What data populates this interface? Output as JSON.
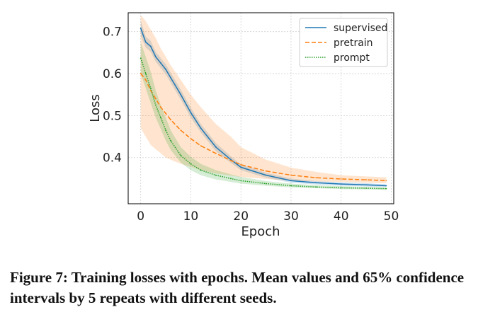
{
  "chart_data": {
    "type": "line",
    "title": "",
    "xlabel": "Epoch",
    "ylabel": "Loss",
    "xlim": [
      -2.5,
      50.5
    ],
    "ylim": [
      0.29,
      0.745
    ],
    "xticks": [
      0,
      10,
      20,
      30,
      40,
      50
    ],
    "yticks": [
      0.4,
      0.5,
      0.6,
      0.7
    ],
    "grid": true,
    "legend_position": "top-right",
    "series": [
      {
        "name": "supervised",
        "color": "#1f77b4",
        "style": "solid",
        "x": [
          0,
          1,
          2,
          3,
          4,
          5,
          6,
          8,
          10,
          12,
          15,
          18,
          20,
          25,
          30,
          35,
          40,
          45,
          49
        ],
        "values": [
          0.708,
          0.675,
          0.665,
          0.64,
          0.625,
          0.61,
          0.59,
          0.55,
          0.507,
          0.47,
          0.425,
          0.395,
          0.377,
          0.358,
          0.345,
          0.34,
          0.337,
          0.335,
          0.333
        ],
        "lower": [
          0.69,
          0.662,
          0.652,
          0.628,
          0.613,
          0.598,
          0.578,
          0.538,
          0.495,
          0.46,
          0.415,
          0.387,
          0.37,
          0.352,
          0.34,
          0.336,
          0.333,
          0.331,
          0.33
        ],
        "upper": [
          0.726,
          0.688,
          0.678,
          0.652,
          0.637,
          0.622,
          0.602,
          0.562,
          0.519,
          0.48,
          0.435,
          0.403,
          0.384,
          0.364,
          0.35,
          0.344,
          0.341,
          0.339,
          0.336
        ]
      },
      {
        "name": "pretrain",
        "color": "#ff7f0e",
        "style": "dashed",
        "x": [
          0,
          1,
          2,
          3,
          4,
          5,
          6,
          8,
          10,
          12,
          15,
          18,
          20,
          25,
          30,
          35,
          40,
          45,
          49
        ],
        "values": [
          0.6,
          0.585,
          0.56,
          0.54,
          0.52,
          0.505,
          0.49,
          0.465,
          0.445,
          0.428,
          0.41,
          0.393,
          0.383,
          0.368,
          0.358,
          0.352,
          0.349,
          0.347,
          0.345
        ],
        "lower": [
          0.47,
          0.45,
          0.43,
          0.42,
          0.41,
          0.4,
          0.395,
          0.385,
          0.378,
          0.37,
          0.362,
          0.357,
          0.354,
          0.349,
          0.345,
          0.343,
          0.342,
          0.34,
          0.339
        ],
        "upper": [
          0.74,
          0.725,
          0.705,
          0.685,
          0.66,
          0.64,
          0.62,
          0.585,
          0.55,
          0.52,
          0.48,
          0.45,
          0.425,
          0.395,
          0.376,
          0.366,
          0.358,
          0.355,
          0.353
        ]
      },
      {
        "name": "prompt",
        "color": "#2ca02c",
        "style": "dotted",
        "x": [
          0,
          1,
          2,
          3,
          4,
          5,
          6,
          8,
          10,
          12,
          15,
          18,
          20,
          25,
          30,
          35,
          40,
          45,
          49
        ],
        "values": [
          0.637,
          0.6,
          0.565,
          0.525,
          0.495,
          0.465,
          0.44,
          0.405,
          0.385,
          0.37,
          0.358,
          0.35,
          0.345,
          0.338,
          0.333,
          0.33,
          0.328,
          0.327,
          0.326
        ],
        "lower": [
          0.6,
          0.565,
          0.53,
          0.495,
          0.468,
          0.44,
          0.418,
          0.388,
          0.37,
          0.358,
          0.348,
          0.342,
          0.338,
          0.333,
          0.329,
          0.327,
          0.325,
          0.324,
          0.323
        ],
        "upper": [
          0.675,
          0.64,
          0.605,
          0.56,
          0.525,
          0.495,
          0.465,
          0.425,
          0.402,
          0.385,
          0.37,
          0.36,
          0.354,
          0.344,
          0.338,
          0.334,
          0.332,
          0.33,
          0.329
        ]
      }
    ]
  },
  "caption": "Figure 7: Training losses with epochs. Mean values and 65% confidence intervals by 5 repeats with different seeds."
}
